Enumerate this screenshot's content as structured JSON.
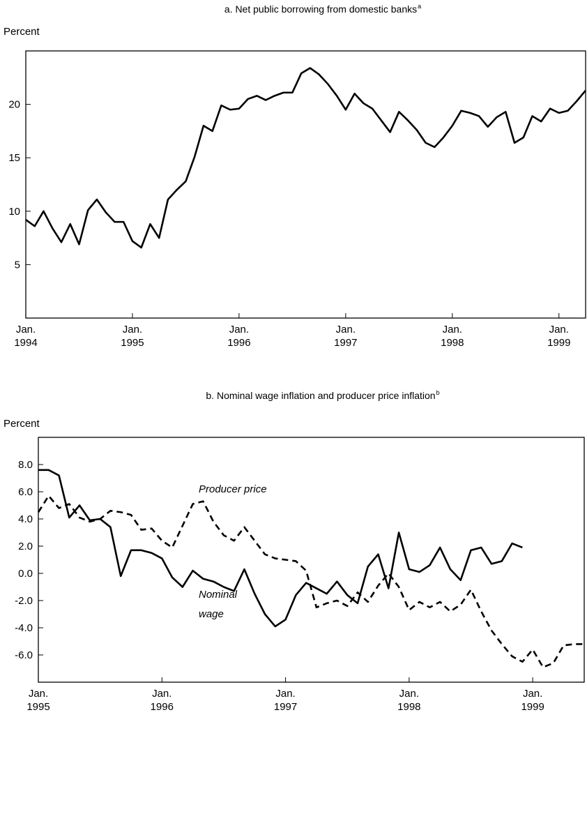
{
  "chart_data": [
    {
      "type": "line",
      "title": "a. Net public borrowing from domestic banks",
      "title_superscript": "a",
      "y_label": "Percent",
      "x": [
        "1994-01",
        "1994-02",
        "1994-03",
        "1994-04",
        "1994-05",
        "1994-06",
        "1994-07",
        "1994-08",
        "1994-09",
        "1994-10",
        "1994-11",
        "1994-12",
        "1995-01",
        "1995-02",
        "1995-03",
        "1995-04",
        "1995-05",
        "1995-06",
        "1995-07",
        "1995-08",
        "1995-09",
        "1995-10",
        "1995-11",
        "1995-12",
        "1996-01",
        "1996-02",
        "1996-03",
        "1996-04",
        "1996-05",
        "1996-06",
        "1996-07",
        "1996-08",
        "1996-09",
        "1996-10",
        "1996-11",
        "1996-12",
        "1997-01",
        "1997-02",
        "1997-03",
        "1997-04",
        "1997-05",
        "1997-06",
        "1997-07",
        "1997-08",
        "1997-09",
        "1997-10",
        "1997-11",
        "1997-12",
        "1998-01",
        "1998-02",
        "1998-03",
        "1998-04",
        "1998-05",
        "1998-06",
        "1998-07",
        "1998-08",
        "1998-09",
        "1998-10",
        "1998-11",
        "1998-12",
        "1999-01",
        "1999-02",
        "1999-03",
        "1999-04"
      ],
      "xlim": [
        "1994-01",
        "1999-04"
      ],
      "xticks": [
        {
          "value": "1994-01",
          "label": "Jan.\n1994"
        },
        {
          "value": "1995-01",
          "label": "Jan.\n1995"
        },
        {
          "value": "1996-01",
          "label": "Jan.\n1996"
        },
        {
          "value": "1997-01",
          "label": "Jan.\n1997"
        },
        {
          "value": "1998-01",
          "label": "Jan.\n1998"
        },
        {
          "value": "1999-01",
          "label": "Jan.\n1999"
        }
      ],
      "ylim": [
        0,
        25
      ],
      "yticks": [
        5,
        10,
        15,
        20
      ],
      "series": [
        {
          "color": "#000000",
          "line_style": "solid",
          "values": [
            9.2,
            8.6,
            10.0,
            8.4,
            7.1,
            8.8,
            6.9,
            10.1,
            11.1,
            9.9,
            9.0,
            9.0,
            7.2,
            6.6,
            8.8,
            7.5,
            11.1,
            12.0,
            12.8,
            15.1,
            18.0,
            17.5,
            19.9,
            19.5,
            19.6,
            20.5,
            20.8,
            20.4,
            20.8,
            21.1,
            21.1,
            22.9,
            23.4,
            22.8,
            21.9,
            20.8,
            19.5,
            21.0,
            20.1,
            19.6,
            18.5,
            17.4,
            19.3,
            18.5,
            17.6,
            16.4,
            16.0,
            16.9,
            18.0,
            19.4,
            19.2,
            18.9,
            17.9,
            18.8,
            19.3,
            16.4,
            16.9,
            18.9,
            18.4,
            19.6,
            19.2,
            19.4,
            20.3,
            21.3
          ]
        }
      ]
    },
    {
      "type": "line",
      "title": "b. Nominal wage inflation and producer price inflation",
      "title_superscript": "b",
      "y_label": "Percent",
      "x": [
        "1995-01",
        "1995-02",
        "1995-03",
        "1995-04",
        "1995-05",
        "1995-06",
        "1995-07",
        "1995-08",
        "1995-09",
        "1995-10",
        "1995-11",
        "1995-12",
        "1996-01",
        "1996-02",
        "1996-03",
        "1996-04",
        "1996-05",
        "1996-06",
        "1996-07",
        "1996-08",
        "1996-09",
        "1996-10",
        "1996-11",
        "1996-12",
        "1997-01",
        "1997-02",
        "1997-03",
        "1997-04",
        "1997-05",
        "1997-06",
        "1997-07",
        "1997-08",
        "1997-09",
        "1997-10",
        "1997-11",
        "1997-12",
        "1998-01",
        "1998-02",
        "1998-03",
        "1998-04",
        "1998-05",
        "1998-06",
        "1998-07",
        "1998-08",
        "1998-09",
        "1998-10",
        "1998-11",
        "1998-12",
        "1999-01",
        "1999-02",
        "1999-03",
        "1999-04",
        "1999-05",
        "1999-06"
      ],
      "xlim": [
        "1995-01",
        "1999-06"
      ],
      "xticks": [
        {
          "value": "1995-01",
          "label": "Jan.\n1995"
        },
        {
          "value": "1996-01",
          "label": "Jan.\n1996"
        },
        {
          "value": "1997-01",
          "label": "Jan.\n1997"
        },
        {
          "value": "1998-01",
          "label": "Jan.\n1998"
        },
        {
          "value": "1999-01",
          "label": "Jan.\n1999"
        }
      ],
      "ylim": [
        -8,
        10
      ],
      "yticks": [
        {
          "value": -6,
          "label": "-6.0"
        },
        {
          "value": -4,
          "label": "-4.0"
        },
        {
          "value": -2,
          "label": "-2.0"
        },
        {
          "value": 0,
          "label": "0.0"
        },
        {
          "value": 2,
          "label": "2.0"
        },
        {
          "value": 4,
          "label": "4.0"
        },
        {
          "value": 6,
          "label": "6.0"
        },
        {
          "value": 8,
          "label": "8.0"
        }
      ],
      "series": [
        {
          "name": "Nominal wage",
          "color": "#000000",
          "line_style": "solid",
          "values": [
            7.6,
            7.6,
            7.2,
            4.1,
            5.0,
            3.9,
            4.0,
            3.4,
            -0.2,
            1.7,
            1.7,
            1.5,
            1.1,
            -0.3,
            -1.0,
            0.2,
            -0.4,
            -0.6,
            -1.0,
            -1.3,
            0.3,
            -1.5,
            -3.0,
            -3.9,
            -3.4,
            -1.6,
            -0.7,
            -1.1,
            -1.5,
            -0.6,
            -1.6,
            -2.2,
            0.5,
            1.4,
            -1.1,
            3.0,
            0.3,
            0.1,
            0.6,
            1.9,
            0.3,
            -0.5,
            1.7,
            1.9,
            0.7,
            0.9,
            2.2,
            1.9,
            null,
            null,
            null,
            null,
            null,
            null
          ]
        },
        {
          "name": "Producer price",
          "color": "#000000",
          "line_style": "dashed",
          "values": [
            4.5,
            5.7,
            4.8,
            5.1,
            4.1,
            3.8,
            4.0,
            4.6,
            4.5,
            4.3,
            3.2,
            3.3,
            2.4,
            1.9,
            3.5,
            5.1,
            5.3,
            3.8,
            2.8,
            2.4,
            3.4,
            2.4,
            1.4,
            1.1,
            1.0,
            0.9,
            0.2,
            -2.5,
            -2.2,
            -2.0,
            -2.4,
            -1.4,
            -2.1,
            -0.9,
            0.0,
            -1.0,
            -2.7,
            -2.1,
            -2.5,
            -2.1,
            -2.8,
            -2.3,
            -1.2,
            -2.8,
            -4.2,
            -5.2,
            -6.1,
            -6.5,
            -5.6,
            -6.9,
            -6.6,
            -5.3,
            -5.2,
            -5.2
          ]
        }
      ]
    }
  ]
}
